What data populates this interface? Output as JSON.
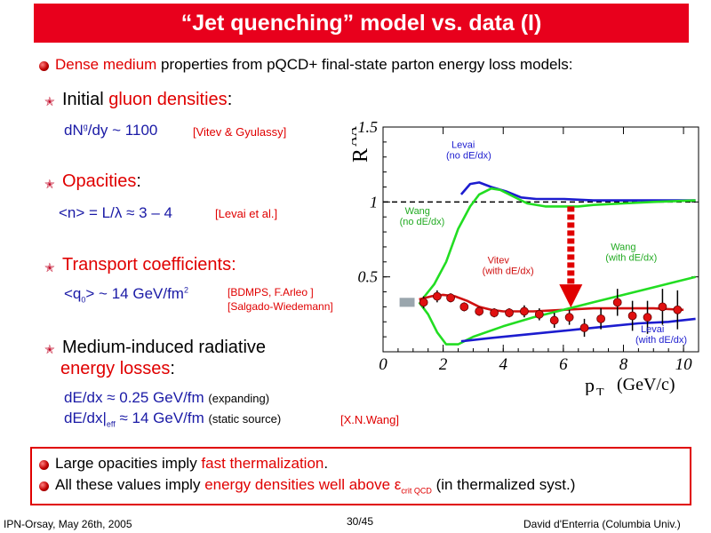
{
  "title": "“Jet quenching” model vs. data (I)",
  "intro": {
    "highlight": "Dense medium",
    "rest": " properties from pQCD+ final-state parton energy loss models:"
  },
  "items": {
    "gluon": {
      "lead": "Initial ",
      "highlight": "gluon densities",
      "tail": ":",
      "formula": "dN",
      "formula_sup": "g",
      "formula_rest": "/dy ~ 1100",
      "ref": "[Vitev & Gyulassy]"
    },
    "opacity": {
      "highlight": "Opacities",
      "tail": ":",
      "formula": "<n> = L/λ  ≈ 3 – 4",
      "ref": "[Levai et al.]"
    },
    "transport": {
      "highlight": "Transport coefficients:",
      "formula": "<q",
      "formula_sub": "0",
      "formula_rest": "> ~ 14 GeV/fm",
      "formula_sup": "2",
      "ref1": "[BDMPS, F.Arleo ]",
      "ref2": "[Salgado-Wiedemann]"
    },
    "energyloss": {
      "lead": "Medium-induced radiative",
      "highlight": "energy losses",
      "tail": ":",
      "line1": "dE/dx ≈ 0.25 GeV/fm",
      "line1_note": "(expanding)",
      "line2a": "dE/dx|",
      "line2_sub": "eff",
      "line2b": " ≈ 14 GeV/fm",
      "line2_note": "(static source)",
      "ref": "[X.N.Wang]"
    }
  },
  "conclusion": {
    "line1": {
      "lead": "Large opacities imply ",
      "highlight": "fast thermalization",
      "tail": "."
    },
    "line2": {
      "lead": "All these values imply ",
      "highlight": "energy densities well above ε",
      "sub": "crit QCD",
      "tail": " (in thermalized syst.)"
    }
  },
  "footer": {
    "left": "IPN-Orsay, May 26th, 2005",
    "center": "30/45",
    "right": "David d'Enterria (Columbia Univ.)"
  },
  "colors": {
    "title_bg": "#e8001c",
    "highlight": "#e00000",
    "formula": "#1a1aa6",
    "curve_blue": "#1c1ccf",
    "curve_green": "#22dd22",
    "curve_red": "#d01010"
  },
  "chart_data": {
    "type": "line",
    "ylabel": "R",
    "ylabel_sub": "AA",
    "xlabel": "p",
    "xlabel_sub": "T",
    "xlabel_unit": "(GeV/c)",
    "xlim": [
      0,
      10.5
    ],
    "ylim": [
      0,
      1.5
    ],
    "xticks": [
      "0",
      "2",
      "4",
      "6",
      "8",
      "10"
    ],
    "yticks": [
      "0.5",
      "1",
      "1.5"
    ],
    "reference_line": 1,
    "series": [
      {
        "name": "Levai (no dE/dx)",
        "color": "#1c1ccf",
        "x": [
          2.6,
          2.9,
          3.2,
          3.6,
          4.1,
          4.6,
          5.1,
          6,
          7,
          8,
          9,
          10.4
        ],
        "y": [
          1.05,
          1.12,
          1.13,
          1.1,
          1.07,
          1.03,
          1.02,
          1.02,
          1.01,
          1.01,
          1.01,
          1.01
        ]
      },
      {
        "name": "Wang (no dE/dx)",
        "color": "#22dd22",
        "x": [
          1.3,
          1.7,
          2.1,
          2.5,
          2.9,
          3.2,
          3.6,
          3.9,
          4.3,
          4.8,
          5.4,
          6,
          6.5,
          7,
          8,
          9,
          10.4
        ],
        "y": [
          0.35,
          0.45,
          0.6,
          0.82,
          0.97,
          1.05,
          1.09,
          1.08,
          1.04,
          0.99,
          0.97,
          0.97,
          0.97,
          0.98,
          0.99,
          1,
          1.01
        ]
      },
      {
        "name": "Vitev (with dE/dx)",
        "color": "#d01010",
        "x": [
          1.2,
          1.6,
          2,
          2.4,
          2.8,
          3.2,
          3.6,
          4,
          4.5,
          5,
          6,
          7,
          8,
          9,
          10
        ],
        "y": [
          0.35,
          0.37,
          0.38,
          0.37,
          0.34,
          0.3,
          0.28,
          0.27,
          0.27,
          0.27,
          0.28,
          0.29,
          0.29,
          0.29,
          0.28
        ]
      },
      {
        "name": "Wang (with dE/dx)",
        "color": "#22dd22",
        "x": [
          1.2,
          1.5,
          1.8,
          2.1,
          2.5,
          3,
          4,
          5,
          6,
          7,
          8,
          9,
          10.4
        ],
        "y": [
          0.33,
          0.25,
          0.13,
          0.05,
          0.05,
          0.1,
          0.17,
          0.23,
          0.28,
          0.33,
          0.38,
          0.43,
          0.5
        ]
      },
      {
        "name": "Levai (with dE/dx)",
        "color": "#1c1ccf",
        "x": [
          2.6,
          3.5,
          4.5,
          5.5,
          6.5,
          7.5,
          8.5,
          9.5,
          10.4
        ],
        "y": [
          0.07,
          0.09,
          0.11,
          0.13,
          0.15,
          0.17,
          0.19,
          0.2,
          0.22
        ]
      }
    ],
    "points": [
      {
        "x": 1.35,
        "y": 0.33,
        "err": 0.04
      },
      {
        "x": 1.8,
        "y": 0.37,
        "err": 0.04
      },
      {
        "x": 2.25,
        "y": 0.36,
        "err": 0.03
      },
      {
        "x": 2.7,
        "y": 0.3,
        "err": 0.03
      },
      {
        "x": 3.2,
        "y": 0.27,
        "err": 0.03
      },
      {
        "x": 3.7,
        "y": 0.26,
        "err": 0.03
      },
      {
        "x": 4.2,
        "y": 0.26,
        "err": 0.03
      },
      {
        "x": 4.7,
        "y": 0.27,
        "err": 0.04
      },
      {
        "x": 5.2,
        "y": 0.25,
        "err": 0.04
      },
      {
        "x": 5.7,
        "y": 0.21,
        "err": 0.05
      },
      {
        "x": 6.2,
        "y": 0.23,
        "err": 0.05
      },
      {
        "x": 6.7,
        "y": 0.16,
        "err": 0.06
      },
      {
        "x": 7.25,
        "y": 0.22,
        "err": 0.07
      },
      {
        "x": 7.8,
        "y": 0.33,
        "err": 0.09
      },
      {
        "x": 8.3,
        "y": 0.24,
        "err": 0.1
      },
      {
        "x": 8.8,
        "y": 0.23,
        "err": 0.11
      },
      {
        "x": 9.3,
        "y": 0.3,
        "err": 0.12
      },
      {
        "x": 9.8,
        "y": 0.28,
        "err": 0.13
      }
    ],
    "curve_labels": [
      {
        "text": [
          "Levai",
          "(no dE/dx)"
        ],
        "color": "#1c1ccf",
        "x": 2.1,
        "y": 1.36
      },
      {
        "text": [
          "Wang",
          "(no dE/dx)"
        ],
        "color": "#22aa22",
        "x": 0.55,
        "y": 0.92
      },
      {
        "text": [
          "Vitev",
          "(with dE/dx)"
        ],
        "color": "#d01010",
        "x": 3.3,
        "y": 0.59
      },
      {
        "text": [
          "Wang",
          "(with dE/dx)"
        ],
        "color": "#22aa22",
        "x": 7.4,
        "y": 0.68
      },
      {
        "text": [
          "Levai",
          "(with dE/dx)"
        ],
        "color": "#1c1ccf",
        "x": 8.4,
        "y": 0.13
      }
    ]
  }
}
